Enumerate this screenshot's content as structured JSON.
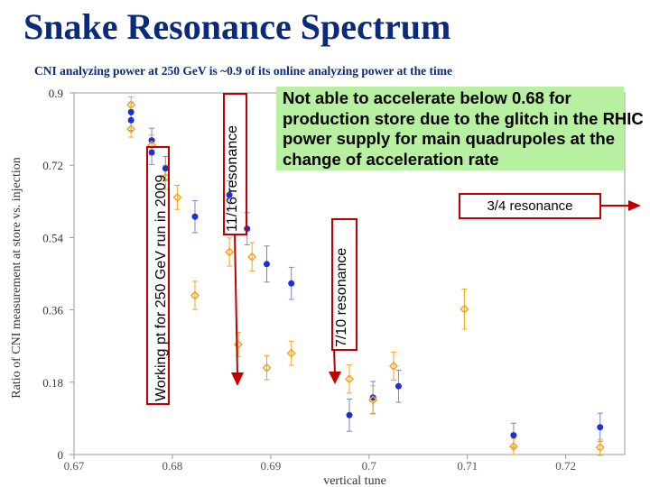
{
  "slide": {
    "title": "Snake Resonance Spectrum",
    "subtitle": "CNI analyzing power at 250 GeV is ~0.9 of its online analyzing power at the time",
    "note": "Not able to accelerate below 0.68 for production store due to the glitch in the RHIC power supply for main quadrupoles at the change of acceleration rate"
  },
  "annotations": {
    "working_point": "Working pt for 250 GeV run in 2009",
    "res_11_16": "11/16 resonance",
    "res_7_10": "7/10 resonance",
    "res_3_4": "3/4 resonance"
  },
  "colors": {
    "title": "#0b2a7a",
    "series_blue": "#1f2fd6",
    "series_orange": "#f2a51f",
    "error_bar": "#7a86c8",
    "marker_red": "#c00000",
    "note_bg": "#b7f0a0"
  },
  "chart_data": {
    "type": "scatter",
    "xlabel": "vertical tune",
    "ylabel": "Ratio of CNI measurement at store vs. injection",
    "xlim": [
      0.67,
      0.726
    ],
    "ylim": [
      0,
      0.9
    ],
    "x_ticks": [
      "0.67",
      "0.68",
      "0.69",
      "0.7",
      "0.71",
      "0.72"
    ],
    "y_ticks": [
      "0",
      "0.18",
      "0.36",
      "0.54",
      "0.72",
      "0.9"
    ],
    "series": [
      {
        "marker": "circle",
        "color": "#1f2fd6",
        "points": [
          {
            "x": 0.6758,
            "y": 0.852,
            "err": 0.025
          },
          {
            "x": 0.6758,
            "y": 0.832,
            "err": 0.025
          },
          {
            "x": 0.6779,
            "y": 0.782,
            "err": 0.03
          },
          {
            "x": 0.6779,
            "y": 0.752,
            "err": 0.03
          },
          {
            "x": 0.6793,
            "y": 0.712,
            "err": 0.03
          },
          {
            "x": 0.6823,
            "y": 0.592,
            "err": 0.04
          },
          {
            "x": 0.6858,
            "y": 0.646,
            "err": 0.035
          },
          {
            "x": 0.6876,
            "y": 0.562,
            "err": 0.04
          },
          {
            "x": 0.6896,
            "y": 0.474,
            "err": 0.045
          },
          {
            "x": 0.6921,
            "y": 0.426,
            "err": 0.04
          },
          {
            "x": 0.698,
            "y": 0.098,
            "err": 0.04
          },
          {
            "x": 0.7004,
            "y": 0.142,
            "err": 0.04
          },
          {
            "x": 0.703,
            "y": 0.17,
            "err": 0.04
          },
          {
            "x": 0.7147,
            "y": 0.048,
            "err": 0.03
          },
          {
            "x": 0.7235,
            "y": 0.068,
            "err": 0.035
          }
        ]
      },
      {
        "marker": "diamond",
        "color": "#f2a51f",
        "points": [
          {
            "x": 0.6758,
            "y": 0.87,
            "err": 0.02
          },
          {
            "x": 0.6758,
            "y": 0.81,
            "err": 0.02
          },
          {
            "x": 0.6779,
            "y": 0.77,
            "err": 0.025
          },
          {
            "x": 0.6793,
            "y": 0.69,
            "err": 0.03
          },
          {
            "x": 0.6805,
            "y": 0.64,
            "err": 0.03
          },
          {
            "x": 0.6823,
            "y": 0.396,
            "err": 0.035
          },
          {
            "x": 0.6858,
            "y": 0.504,
            "err": 0.035
          },
          {
            "x": 0.6867,
            "y": 0.274,
            "err": 0.03
          },
          {
            "x": 0.6881,
            "y": 0.492,
            "err": 0.035
          },
          {
            "x": 0.6896,
            "y": 0.216,
            "err": 0.03
          },
          {
            "x": 0.6921,
            "y": 0.252,
            "err": 0.03
          },
          {
            "x": 0.698,
            "y": 0.188,
            "err": 0.035
          },
          {
            "x": 0.7004,
            "y": 0.136,
            "err": 0.035
          },
          {
            "x": 0.7025,
            "y": 0.22,
            "err": 0.035
          },
          {
            "x": 0.7097,
            "y": 0.362,
            "err": 0.05
          },
          {
            "x": 0.7147,
            "y": 0.02,
            "err": 0.02
          },
          {
            "x": 0.7235,
            "y": 0.018,
            "err": 0.02
          }
        ]
      }
    ]
  }
}
